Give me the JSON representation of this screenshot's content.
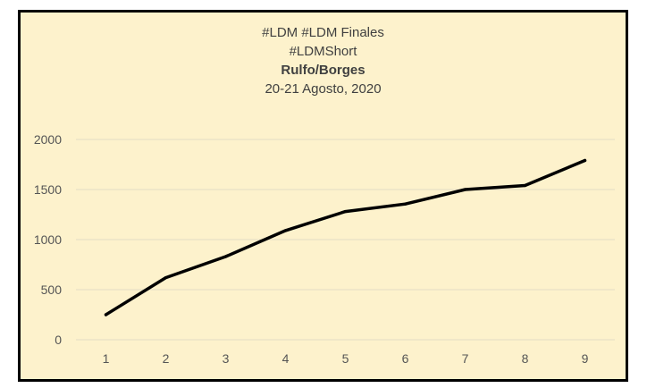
{
  "chart_data": {
    "type": "line",
    "title_lines": [
      "#LDM #LDM Finales",
      "#LDMShort",
      "Rulfo/Borges",
      "20-21 Agosto, 2020"
    ],
    "x": [
      "1",
      "2",
      "3",
      "4",
      "5",
      "6",
      "7",
      "8",
      "9"
    ],
    "series": [
      {
        "values": [
          250,
          620,
          830,
          1090,
          1280,
          1355,
          1500,
          1540,
          1790
        ]
      }
    ],
    "yticks": [
      0,
      500,
      1000,
      1500,
      2000
    ],
    "ylim": [
      0,
      2000
    ],
    "grid": true,
    "legend": "none",
    "xlabel": "",
    "ylabel": "",
    "line_color": "#000000",
    "background_color": "#fdf2cc",
    "grid_color": "#e3dcc4"
  }
}
